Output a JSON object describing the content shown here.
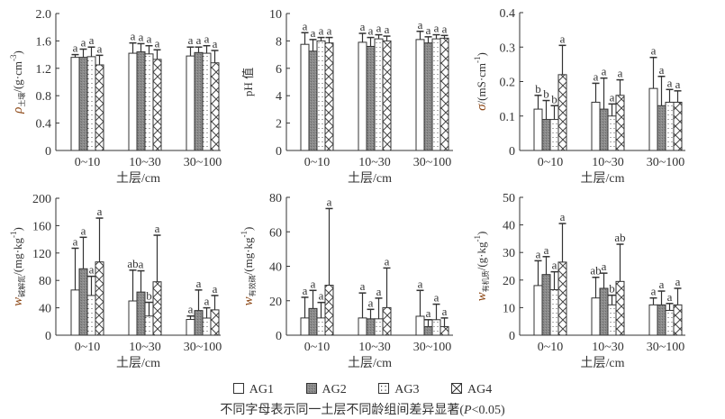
{
  "legend": [
    {
      "label": "AG1",
      "pattern": "white"
    },
    {
      "label": "AG2",
      "pattern": "gray"
    },
    {
      "label": "AG3",
      "pattern": "dots"
    },
    {
      "label": "AG4",
      "pattern": "cross"
    }
  ],
  "note": {
    "prefix": "不同字母表示同一土层不同龄组间差异显著(",
    "p_symbol": "P",
    "suffix": "<0.05)"
  },
  "colors": {
    "axis": "#333333",
    "bar_fill_gray": "#8a8a8a",
    "ylabel_symbol": "#8b4513"
  },
  "chart_data": [
    {
      "type": "bar",
      "xlabel": "土层/cm",
      "ylabel_symbol": "ρ",
      "ylabel_sub": "土壤",
      "ylabel_unit": "/(g·cm",
      "ylabel_exp": "-3",
      "ylabel_close": ")",
      "ylim": [
        0,
        2.0
      ],
      "yticks": [
        "0",
        "0.4",
        "0.8",
        "1.2",
        "1.6",
        "2.0"
      ],
      "ytick_values": [
        0,
        0.4,
        0.8,
        1.2,
        1.6,
        2.0
      ],
      "categories": [
        "0~10",
        "10~30",
        "30~100"
      ],
      "series": [
        {
          "name": "AG1",
          "values": [
            1.36,
            1.42,
            1.38
          ],
          "err": [
            1.4,
            1.57,
            1.51
          ],
          "letters": [
            "a",
            "a",
            "a"
          ]
        },
        {
          "name": "AG2",
          "values": [
            1.36,
            1.44,
            1.43
          ],
          "err": [
            1.48,
            1.56,
            1.51
          ],
          "letters": [
            "a",
            "a",
            "a"
          ]
        },
        {
          "name": "AG3",
          "values": [
            1.37,
            1.41,
            1.42
          ],
          "err": [
            1.51,
            1.53,
            1.53
          ],
          "letters": [
            "a",
            "a",
            "a"
          ]
        },
        {
          "name": "AG4",
          "values": [
            1.25,
            1.33,
            1.28
          ],
          "err": [
            1.39,
            1.47,
            1.46
          ],
          "letters": [
            "a",
            "a",
            "a"
          ]
        }
      ]
    },
    {
      "type": "bar",
      "xlabel": "土层/cm",
      "ylabel_symbol": "",
      "ylabel_sub": "",
      "ylabel_unit": "pH 值",
      "ylabel_exp": "",
      "ylabel_close": "",
      "ylim": [
        0,
        10
      ],
      "yticks": [
        "0",
        "2",
        "4",
        "6",
        "8",
        "10"
      ],
      "ytick_values": [
        0,
        2,
        4,
        6,
        8,
        10
      ],
      "categories": [
        "0~10",
        "10~30",
        "30~100"
      ],
      "series": [
        {
          "name": "AG1",
          "values": [
            7.75,
            7.9,
            8.1
          ],
          "err": [
            8.6,
            8.55,
            8.7
          ],
          "letters": [
            "a",
            "a",
            "a"
          ]
        },
        {
          "name": "AG2",
          "values": [
            7.25,
            7.6,
            7.85
          ],
          "err": [
            8.1,
            8.25,
            8.3
          ],
          "letters": [
            "a",
            "a",
            "a"
          ]
        },
        {
          "name": "AG3",
          "values": [
            8.0,
            8.15,
            8.15
          ],
          "err": [
            8.25,
            8.45,
            8.45
          ],
          "letters": [
            "a",
            "a",
            "a"
          ]
        },
        {
          "name": "AG4",
          "values": [
            7.85,
            8.0,
            8.2
          ],
          "err": [
            8.25,
            8.35,
            8.4
          ],
          "letters": [
            "a",
            "a",
            "a"
          ]
        }
      ]
    },
    {
      "type": "bar",
      "xlabel": "土层/cm",
      "ylabel_symbol": "σ",
      "ylabel_sub": "",
      "ylabel_unit": "/(mS·cm",
      "ylabel_exp": "-1",
      "ylabel_close": ")",
      "ylim": [
        0,
        0.4
      ],
      "yticks": [
        "0",
        "0.1",
        "0.2",
        "0.3",
        "0.4"
      ],
      "ytick_values": [
        0,
        0.1,
        0.2,
        0.3,
        0.4
      ],
      "categories": [
        "0~10",
        "10~30",
        "30~100"
      ],
      "series": [
        {
          "name": "AG1",
          "values": [
            0.12,
            0.14,
            0.18
          ],
          "err": [
            0.16,
            0.195,
            0.27
          ],
          "letters": [
            "b",
            "a",
            "a"
          ]
        },
        {
          "name": "AG2",
          "values": [
            0.09,
            0.12,
            0.13
          ],
          "err": [
            0.145,
            0.21,
            0.215
          ],
          "letters": [
            "b",
            "a",
            "a"
          ]
        },
        {
          "name": "AG3",
          "values": [
            0.09,
            0.1,
            0.14
          ],
          "err": [
            0.13,
            0.135,
            0.177
          ],
          "letters": [
            "b",
            "a",
            "a"
          ]
        },
        {
          "name": "AG4",
          "values": [
            0.22,
            0.16,
            0.14
          ],
          "err": [
            0.305,
            0.205,
            0.173
          ],
          "letters": [
            "a",
            "a",
            "a"
          ]
        }
      ]
    },
    {
      "type": "bar",
      "xlabel": "土层/cm",
      "ylabel_symbol": "w",
      "ylabel_sub": "碱解氮",
      "ylabel_unit": "/(mg·kg",
      "ylabel_exp": "-1",
      "ylabel_close": ")",
      "ylim": [
        0,
        200
      ],
      "yticks": [
        "0",
        "40",
        "80",
        "120",
        "160",
        "200"
      ],
      "ytick_values": [
        0,
        40,
        80,
        120,
        160,
        200
      ],
      "categories": [
        "0~10",
        "10~30",
        "30~100"
      ],
      "series": [
        {
          "name": "AG1",
          "values": [
            66,
            50,
            23
          ],
          "err": [
            127,
            95,
            28
          ],
          "letters": [
            "a",
            "ab",
            "a"
          ]
        },
        {
          "name": "AG2",
          "values": [
            97,
            63,
            36
          ],
          "err": [
            143,
            94,
            66
          ],
          "letters": [
            "a",
            "a",
            "a"
          ]
        },
        {
          "name": "AG3",
          "values": [
            58,
            28,
            25
          ],
          "err": [
            86,
            48,
            40
          ],
          "letters": [
            "a",
            "b",
            "a"
          ]
        },
        {
          "name": "AG4",
          "values": [
            107,
            78,
            37
          ],
          "err": [
            171,
            146,
            58
          ],
          "letters": [
            "a",
            "a",
            "a"
          ]
        }
      ]
    },
    {
      "type": "bar",
      "xlabel": "土层/cm",
      "ylabel_symbol": "w",
      "ylabel_sub": "有效磷",
      "ylabel_unit": "/(mg·kg",
      "ylabel_exp": "-1",
      "ylabel_close": ")",
      "ylim": [
        0,
        80
      ],
      "yticks": [
        "0",
        "20",
        "40",
        "60",
        "80"
      ],
      "ytick_values": [
        0,
        20,
        40,
        60,
        80
      ],
      "categories": [
        "0~10",
        "10~30",
        "30~100"
      ],
      "series": [
        {
          "name": "AG1",
          "values": [
            10,
            10,
            11
          ],
          "err": [
            22,
            24.5,
            26
          ],
          "letters": [
            "a",
            "a",
            "a"
          ]
        },
        {
          "name": "AG2",
          "values": [
            15.5,
            9.5,
            5
          ],
          "err": [
            26,
            15,
            9
          ],
          "letters": [
            "a",
            "a",
            "a"
          ]
        },
        {
          "name": "AG3",
          "values": [
            10,
            9.5,
            9
          ],
          "err": [
            19,
            21.5,
            18
          ],
          "letters": [
            "a",
            "a",
            "a"
          ]
        },
        {
          "name": "AG4",
          "values": [
            29,
            16,
            5
          ],
          "err": [
            73.5,
            39,
            10
          ],
          "letters": [
            "a",
            "a",
            "a"
          ]
        }
      ]
    },
    {
      "type": "bar",
      "xlabel": "土层/cm",
      "ylabel_symbol": "w",
      "ylabel_sub": "有机质",
      "ylabel_unit": "/(g·kg",
      "ylabel_exp": "-1",
      "ylabel_close": ")",
      "ylim": [
        0,
        50
      ],
      "yticks": [
        "0",
        "10",
        "20",
        "30",
        "40",
        "50"
      ],
      "ytick_values": [
        0,
        10,
        20,
        30,
        40,
        50
      ],
      "categories": [
        "0~10",
        "10~30",
        "30~100"
      ],
      "series": [
        {
          "name": "AG1",
          "values": [
            18,
            13.5,
            11
          ],
          "err": [
            27,
            21,
            13.5
          ],
          "letters": [
            "a",
            "ab",
            "a"
          ]
        },
        {
          "name": "AG2",
          "values": [
            22,
            17,
            11
          ],
          "err": [
            28.5,
            22.5,
            16
          ],
          "letters": [
            "a",
            "a",
            "a"
          ]
        },
        {
          "name": "AG3",
          "values": [
            16.5,
            11,
            9
          ],
          "err": [
            23,
            14.5,
            11.5
          ],
          "letters": [
            "a",
            "b",
            "a"
          ]
        },
        {
          "name": "AG4",
          "values": [
            26.5,
            19.5,
            11
          ],
          "err": [
            40.5,
            33,
            17
          ],
          "letters": [
            "a",
            "ab",
            "a"
          ]
        }
      ]
    }
  ]
}
